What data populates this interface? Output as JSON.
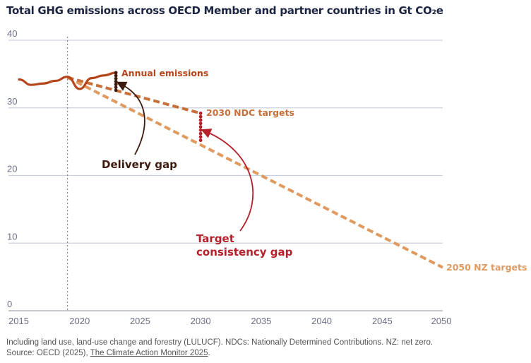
{
  "chart_data": {
    "type": "line",
    "title": "Total GHG emissions across OECD Member and partner countries in Gt CO₂e",
    "xlabel": "",
    "ylabel": "",
    "xlim": [
      2015,
      2050
    ],
    "ylim": [
      0,
      40
    ],
    "grid": true,
    "yticks": [
      0,
      10,
      20,
      30,
      40
    ],
    "xticks": [
      2015,
      2020,
      2025,
      2030,
      2035,
      2040,
      2045,
      2050
    ],
    "reference_line_x": 2019,
    "series": [
      {
        "name": "Annual emissions",
        "style": "solid",
        "color": "#b5461c",
        "x": [
          2015,
          2016,
          2017,
          2018,
          2019,
          2020,
          2021,
          2022,
          2023
        ],
        "y": [
          34.2,
          33.4,
          33.6,
          34.0,
          34.6,
          32.8,
          34.4,
          34.8,
          35.2
        ]
      },
      {
        "name": "2030 NDC targets",
        "style": "dashed",
        "color": "#c8703a",
        "x": [
          2019,
          2030
        ],
        "y": [
          34.5,
          29.2
        ]
      },
      {
        "name": "2050 NZ targets",
        "style": "dashed",
        "color": "#e09a5f",
        "x": [
          2019,
          2050
        ],
        "y": [
          34.5,
          6.4
        ]
      }
    ],
    "gaps": [
      {
        "name": "Delivery gap",
        "x": 2023,
        "from": 35.2,
        "to": 32.6,
        "color": "#3d1a0e"
      },
      {
        "name": "Target consistency gap",
        "x": 2030,
        "from": 29.2,
        "to": 25.2,
        "color": "#b5202a"
      }
    ],
    "annotations": [
      {
        "text": "Annual emissions",
        "color": "#b5461c"
      },
      {
        "text": "2030 NDC targets",
        "color": "#c8703a"
      },
      {
        "text": "2050 NZ targets",
        "color": "#e09a5f"
      },
      {
        "text": "Delivery gap",
        "color": "#3d1a0e"
      },
      {
        "text": "Target consistency gap",
        "lines": [
          "Target",
          "consistency gap"
        ],
        "color": "#b5202a"
      }
    ]
  },
  "footer": {
    "note": "Including land use, land-use change and forestry (LULUCF). NDCs: Nationally Determined Contributions. NZ: net zero.",
    "source_prefix": "Source: OECD (2025), ",
    "source_link": "The Climate Action Monitor 2025",
    "source_suffix": "."
  }
}
